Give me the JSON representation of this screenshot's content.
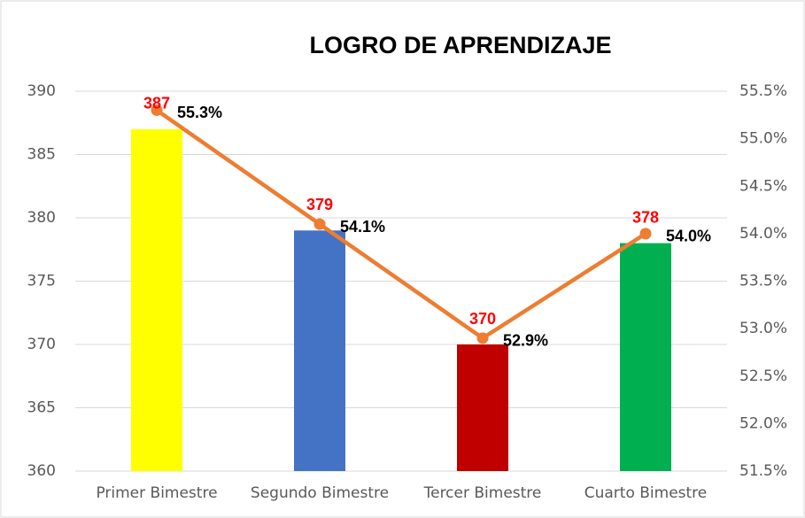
{
  "chart_data": {
    "type": "bar",
    "title": "LOGRO DE APRENDIZAJE",
    "categories": [
      "Primer Bimestre",
      "Segundo Bimestre",
      "Tercer Bimestre",
      "Cuarto Bimestre"
    ],
    "series": [
      {
        "type": "bar",
        "colors": [
          "#ffff00",
          "#4472c4",
          "#c00000",
          "#00b050"
        ],
        "values": [
          387,
          379,
          370,
          378
        ],
        "label_color": "#ff0000"
      },
      {
        "type": "line",
        "axis": "y2",
        "color": "#ed7d31",
        "values": [
          55.3,
          54.1,
          52.9,
          54.0
        ],
        "value_labels": [
          "55.3%",
          "54.1%",
          "52.9%",
          "54.0%"
        ]
      }
    ],
    "ylim": [
      360,
      390
    ],
    "yticks": [
      360,
      365,
      370,
      375,
      380,
      385,
      390
    ],
    "y2lim": [
      51.5,
      55.5
    ],
    "y2ticks": [
      {
        "value": 51.5,
        "label": "51.5%"
      },
      {
        "value": 52.0,
        "label": "52.0%"
      },
      {
        "value": 52.5,
        "label": "52.5%"
      },
      {
        "value": 53.0,
        "label": "53.0%"
      },
      {
        "value": 53.5,
        "label": "53.5%"
      },
      {
        "value": 54.0,
        "label": "54.0%"
      },
      {
        "value": 54.5,
        "label": "54.5%"
      },
      {
        "value": 55.0,
        "label": "55.0%"
      },
      {
        "value": 55.5,
        "label": "55.5%"
      }
    ],
    "grid": true
  }
}
